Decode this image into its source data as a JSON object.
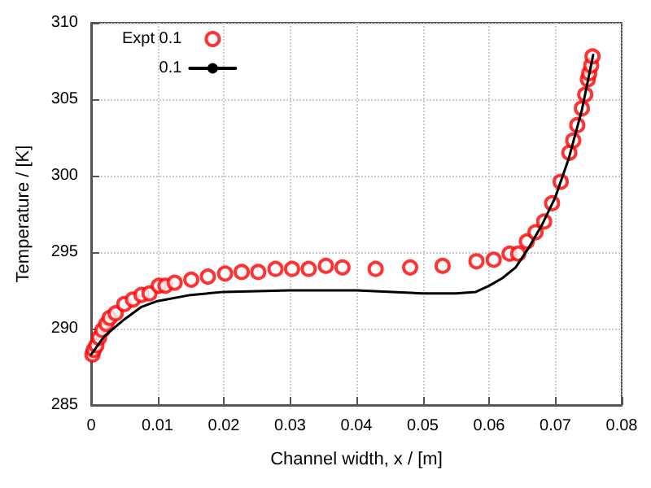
{
  "chart_data": {
    "type": "scatter",
    "xlabel": "Channel width, x / [m]",
    "ylabel": "Temperature / [K]",
    "xlim": [
      0,
      0.08
    ],
    "xticks": [
      0,
      0.01,
      0.02,
      0.03,
      0.04,
      0.05,
      0.06,
      0.07,
      0.08
    ],
    "ylim": [
      285,
      310
    ],
    "yticks": [
      285,
      290,
      295,
      300,
      305,
      310
    ],
    "grid": true,
    "legend": "top left",
    "series": [
      {
        "name": "Expt 0.1",
        "marker": "circle",
        "color": "#ff0000",
        "x": [
          0.0002,
          0.0004,
          0.0008,
          0.0012,
          0.0017,
          0.0023,
          0.0028,
          0.0037,
          0.005,
          0.0063,
          0.0076,
          0.0088,
          0.0102,
          0.0112,
          0.0126,
          0.0151,
          0.0176,
          0.0202,
          0.0227,
          0.0252,
          0.0278,
          0.0303,
          0.0328,
          0.0354,
          0.0379,
          0.0429,
          0.0481,
          0.053,
          0.0581,
          0.0607,
          0.0631,
          0.0644,
          0.0657,
          0.067,
          0.0683,
          0.0695,
          0.0708,
          0.0721,
          0.0727,
          0.0733,
          0.074,
          0.0745,
          0.0749,
          0.0751,
          0.0754,
          0.0756
        ],
        "values": [
          288.3,
          288.6,
          288.9,
          289.4,
          289.9,
          290.3,
          290.7,
          291.0,
          291.6,
          291.9,
          292.2,
          292.3,
          292.8,
          292.8,
          293.0,
          293.2,
          293.4,
          293.6,
          293.7,
          293.7,
          293.9,
          293.9,
          293.9,
          294.1,
          294.0,
          293.9,
          294.0,
          294.1,
          294.4,
          294.5,
          294.9,
          294.9,
          295.7,
          296.3,
          297.0,
          298.2,
          299.6,
          301.5,
          302.3,
          303.3,
          304.4,
          305.3,
          306.3,
          306.7,
          307.2,
          307.8
        ]
      },
      {
        "name": "0.1",
        "type": "line",
        "marker": "none",
        "line_style": "solid",
        "color": "#000000",
        "x": [
          0,
          0.001,
          0.002,
          0.005,
          0.0075,
          0.01,
          0.015,
          0.02,
          0.03,
          0.04,
          0.05,
          0.055,
          0.058,
          0.06,
          0.062,
          0.064,
          0.066,
          0.068,
          0.07,
          0.072,
          0.074,
          0.0757
        ],
        "values": [
          288.3,
          288.9,
          289.5,
          290.6,
          291.4,
          291.8,
          292.2,
          292.4,
          292.5,
          292.5,
          292.3,
          292.3,
          292.4,
          292.8,
          293.3,
          294.0,
          295.3,
          296.8,
          298.6,
          301.1,
          304.3,
          307.9
        ]
      }
    ]
  }
}
